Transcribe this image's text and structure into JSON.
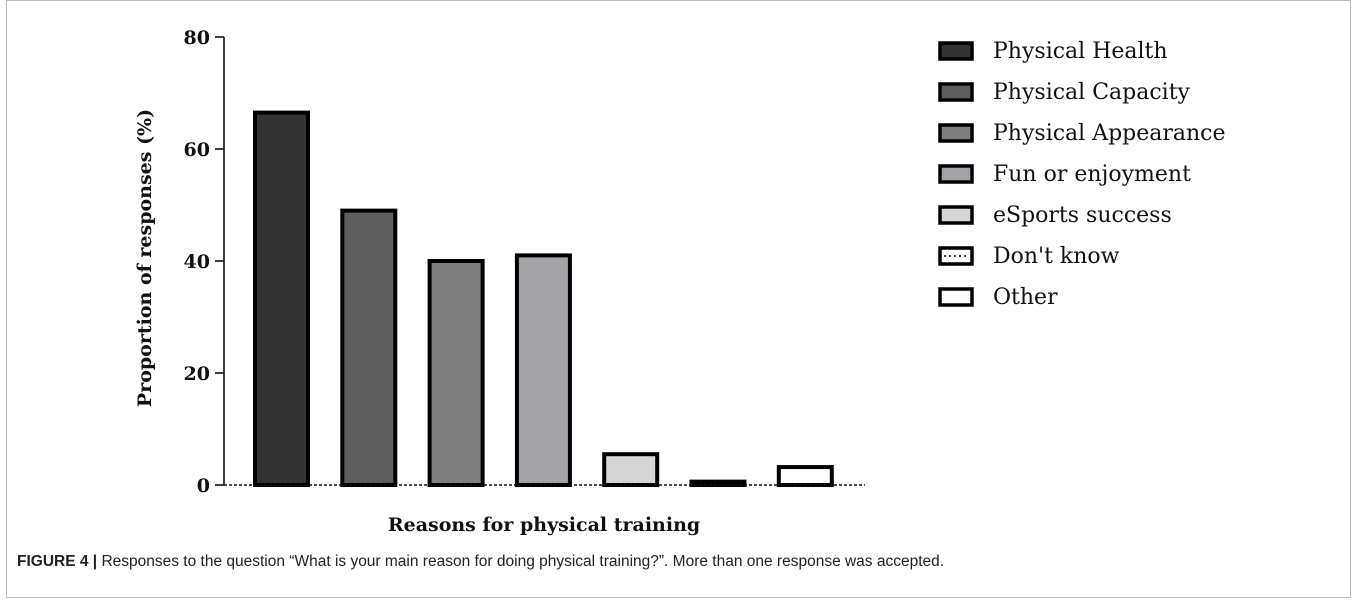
{
  "chart_data": {
    "type": "bar",
    "title": "",
    "xlabel": "Reasons for physical training",
    "ylabel": "Proportion of responses (%)",
    "ylim": [
      0,
      80
    ],
    "yticks": [
      0,
      20,
      40,
      60,
      80
    ],
    "grid": false,
    "legend_position": "right",
    "categories": [
      "Physical Health",
      "Physical Capacity",
      "Physical Appearance",
      "Fun or enjoyment",
      "eSports success",
      "Don't know",
      "Other"
    ],
    "values": [
      66.5,
      49,
      40,
      41,
      5.5,
      0.6,
      3.2
    ],
    "colors": [
      "#333333",
      "#5e5e5e",
      "#7f7f7f",
      "#a3a3a7",
      "#d6d6d6",
      "#ffffff",
      "#ffffff"
    ],
    "legend_swatch_styles": [
      "solid",
      "solid",
      "solid",
      "solid",
      "solid",
      "dotted",
      "solid"
    ]
  },
  "caption": {
    "label": "FIGURE 4 |",
    "text": " Responses to the question “What is your main reason for doing physical training?”. More than one response was accepted."
  }
}
